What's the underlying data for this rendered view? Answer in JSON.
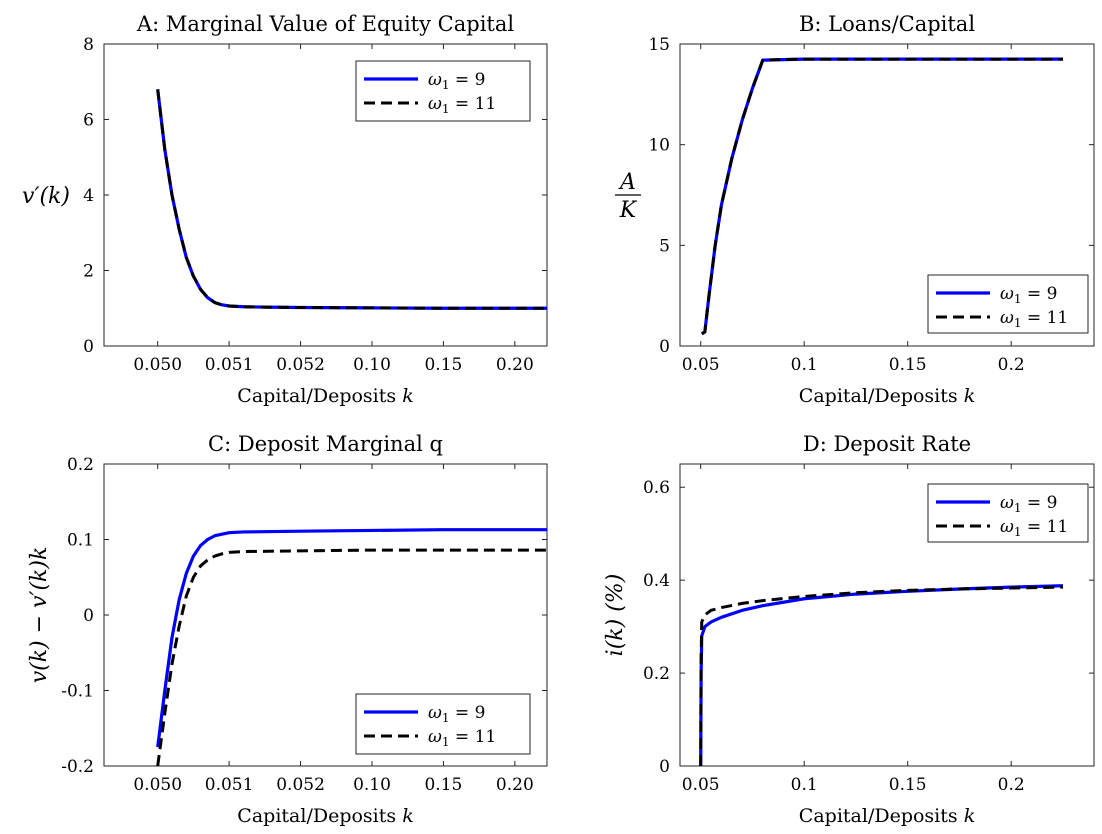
{
  "chart_data": [
    {
      "panel": "A",
      "type": "line",
      "title": "A: Marginal Value of Equity Capital",
      "xlabel": "Capital/Deposits k",
      "ylabel": "v′(k)",
      "ylim": [
        0,
        8
      ],
      "yticks": [
        "0",
        "2",
        "4",
        "6",
        "8"
      ],
      "x_scale": "nonuniform (tick labels evenly spaced)",
      "xticks": [
        "0.050",
        "0.051",
        "0.052",
        "0.10",
        "0.15",
        "0.20"
      ],
      "legend_position": "top-right",
      "grid": false,
      "series": [
        {
          "name": "ω1 = 9",
          "color": "#0000ff",
          "style": "solid",
          "points": [
            [
              0.05,
              6.8
            ],
            [
              0.0501,
              5.2
            ],
            [
              0.0502,
              4.0
            ],
            [
              0.0503,
              3.1
            ],
            [
              0.0504,
              2.35
            ],
            [
              0.0505,
              1.85
            ],
            [
              0.0506,
              1.5
            ],
            [
              0.0507,
              1.28
            ],
            [
              0.0508,
              1.15
            ],
            [
              0.0509,
              1.09
            ],
            [
              0.051,
              1.06
            ],
            [
              0.0512,
              1.04
            ],
            [
              0.0515,
              1.03
            ],
            [
              0.052,
              1.02
            ],
            [
              0.1,
              1.01
            ],
            [
              0.15,
              1.0
            ],
            [
              0.2,
              1.0
            ],
            [
              0.225,
              1.0
            ]
          ]
        },
        {
          "name": "ω1 = 11",
          "color": "#000000",
          "style": "dashed",
          "points": [
            [
              0.05,
              6.8
            ],
            [
              0.0501,
              5.2
            ],
            [
              0.0502,
              4.0
            ],
            [
              0.0503,
              3.1
            ],
            [
              0.0504,
              2.35
            ],
            [
              0.0505,
              1.85
            ],
            [
              0.0506,
              1.5
            ],
            [
              0.0507,
              1.28
            ],
            [
              0.0508,
              1.15
            ],
            [
              0.0509,
              1.09
            ],
            [
              0.051,
              1.06
            ],
            [
              0.0512,
              1.04
            ],
            [
              0.0515,
              1.03
            ],
            [
              0.052,
              1.02
            ],
            [
              0.1,
              1.01
            ],
            [
              0.15,
              1.0
            ],
            [
              0.2,
              1.0
            ],
            [
              0.225,
              1.0
            ]
          ]
        }
      ]
    },
    {
      "panel": "B",
      "type": "line",
      "title": "B: Loans/Capital",
      "xlabel": "Capital/Deposits k",
      "ylabel": "A/K",
      "xlim": [
        0.04,
        0.24
      ],
      "ylim": [
        0,
        15
      ],
      "xticks": [
        "0.05",
        "0.1",
        "0.15",
        "0.2"
      ],
      "yticks": [
        "0",
        "5",
        "10",
        "15"
      ],
      "legend_position": "bottom-right",
      "grid": false,
      "series": [
        {
          "name": "ω1 = 9",
          "color": "#0000ff",
          "style": "solid",
          "points": [
            [
              0.0505,
              0.6
            ],
            [
              0.052,
              0.7
            ],
            [
              0.054,
              2.5
            ],
            [
              0.057,
              5.0
            ],
            [
              0.06,
              7.0
            ],
            [
              0.065,
              9.3
            ],
            [
              0.07,
              11.2
            ],
            [
              0.075,
              12.8
            ],
            [
              0.08,
              14.2
            ],
            [
              0.1,
              14.25
            ],
            [
              0.15,
              14.25
            ],
            [
              0.2,
              14.25
            ],
            [
              0.225,
              14.25
            ]
          ]
        },
        {
          "name": "ω1 = 11",
          "color": "#000000",
          "style": "dashed",
          "points": [
            [
              0.0505,
              0.6
            ],
            [
              0.052,
              0.7
            ],
            [
              0.054,
              2.5
            ],
            [
              0.057,
              5.0
            ],
            [
              0.06,
              7.0
            ],
            [
              0.065,
              9.3
            ],
            [
              0.07,
              11.2
            ],
            [
              0.075,
              12.8
            ],
            [
              0.08,
              14.2
            ],
            [
              0.1,
              14.25
            ],
            [
              0.15,
              14.25
            ],
            [
              0.2,
              14.25
            ],
            [
              0.225,
              14.25
            ]
          ]
        }
      ]
    },
    {
      "panel": "C",
      "type": "line",
      "title": "C: Deposit Marginal q",
      "xlabel": "Capital/Deposits k",
      "ylabel": "v(k) − v′(k)k",
      "ylim": [
        -0.2,
        0.2
      ],
      "yticks": [
        "-0.2",
        "-0.1",
        "0",
        "0.1",
        "0.2"
      ],
      "x_scale": "nonuniform (tick labels evenly spaced)",
      "xticks": [
        "0.050",
        "0.051",
        "0.052",
        "0.10",
        "0.15",
        "0.20"
      ],
      "legend_position": "bottom-right",
      "grid": false,
      "series": [
        {
          "name": "ω1 = 9",
          "color": "#0000ff",
          "style": "solid",
          "points": [
            [
              0.05,
              -0.175
            ],
            [
              0.0501,
              -0.1
            ],
            [
              0.0502,
              -0.03
            ],
            [
              0.0503,
              0.02
            ],
            [
              0.0504,
              0.055
            ],
            [
              0.0505,
              0.078
            ],
            [
              0.0506,
              0.092
            ],
            [
              0.0507,
              0.1
            ],
            [
              0.0508,
              0.105
            ],
            [
              0.0509,
              0.107
            ],
            [
              0.051,
              0.109
            ],
            [
              0.0512,
              0.11
            ],
            [
              0.052,
              0.111
            ],
            [
              0.1,
              0.112
            ],
            [
              0.15,
              0.113
            ],
            [
              0.2,
              0.113
            ],
            [
              0.225,
              0.113
            ]
          ]
        },
        {
          "name": "ω1 = 11",
          "color": "#000000",
          "style": "dashed",
          "points": [
            [
              0.05,
              -0.2
            ],
            [
              0.0501,
              -0.13
            ],
            [
              0.0502,
              -0.065
            ],
            [
              0.0503,
              -0.015
            ],
            [
              0.0504,
              0.025
            ],
            [
              0.0505,
              0.05
            ],
            [
              0.0506,
              0.065
            ],
            [
              0.0507,
              0.073
            ],
            [
              0.0508,
              0.078
            ],
            [
              0.0509,
              0.081
            ],
            [
              0.051,
              0.083
            ],
            [
              0.0512,
              0.084
            ],
            [
              0.052,
              0.085
            ],
            [
              0.1,
              0.086
            ],
            [
              0.15,
              0.086
            ],
            [
              0.2,
              0.086
            ],
            [
              0.225,
              0.086
            ]
          ]
        }
      ]
    },
    {
      "panel": "D",
      "type": "line",
      "title": "D: Deposit Rate",
      "xlabel": "Capital/Deposits k",
      "ylabel": "i(k) (%)",
      "xlim": [
        0.04,
        0.24
      ],
      "ylim": [
        0,
        0.65
      ],
      "xticks": [
        "0.05",
        "0.1",
        "0.15",
        "0.2"
      ],
      "yticks": [
        "0",
        "0.2",
        "0.4",
        "0.6"
      ],
      "legend_position": "top-right",
      "grid": false,
      "series": [
        {
          "name": "ω1 = 9",
          "color": "#0000ff",
          "style": "solid",
          "points": [
            [
              0.05,
              0.0
            ],
            [
              0.0502,
              0.2
            ],
            [
              0.0505,
              0.28
            ],
            [
              0.052,
              0.3
            ],
            [
              0.055,
              0.31
            ],
            [
              0.06,
              0.32
            ],
            [
              0.07,
              0.335
            ],
            [
              0.08,
              0.345
            ],
            [
              0.1,
              0.36
            ],
            [
              0.125,
              0.37
            ],
            [
              0.15,
              0.376
            ],
            [
              0.175,
              0.381
            ],
            [
              0.2,
              0.385
            ],
            [
              0.225,
              0.388
            ]
          ]
        },
        {
          "name": "ω1 = 11",
          "color": "#000000",
          "style": "dashed",
          "points": [
            [
              0.05,
              0.0
            ],
            [
              0.0502,
              0.23
            ],
            [
              0.0505,
              0.31
            ],
            [
              0.052,
              0.325
            ],
            [
              0.055,
              0.335
            ],
            [
              0.06,
              0.341
            ],
            [
              0.07,
              0.35
            ],
            [
              0.08,
              0.356
            ],
            [
              0.1,
              0.365
            ],
            [
              0.125,
              0.373
            ],
            [
              0.15,
              0.378
            ],
            [
              0.175,
              0.381
            ],
            [
              0.2,
              0.383
            ],
            [
              0.225,
              0.385
            ]
          ]
        }
      ]
    }
  ]
}
